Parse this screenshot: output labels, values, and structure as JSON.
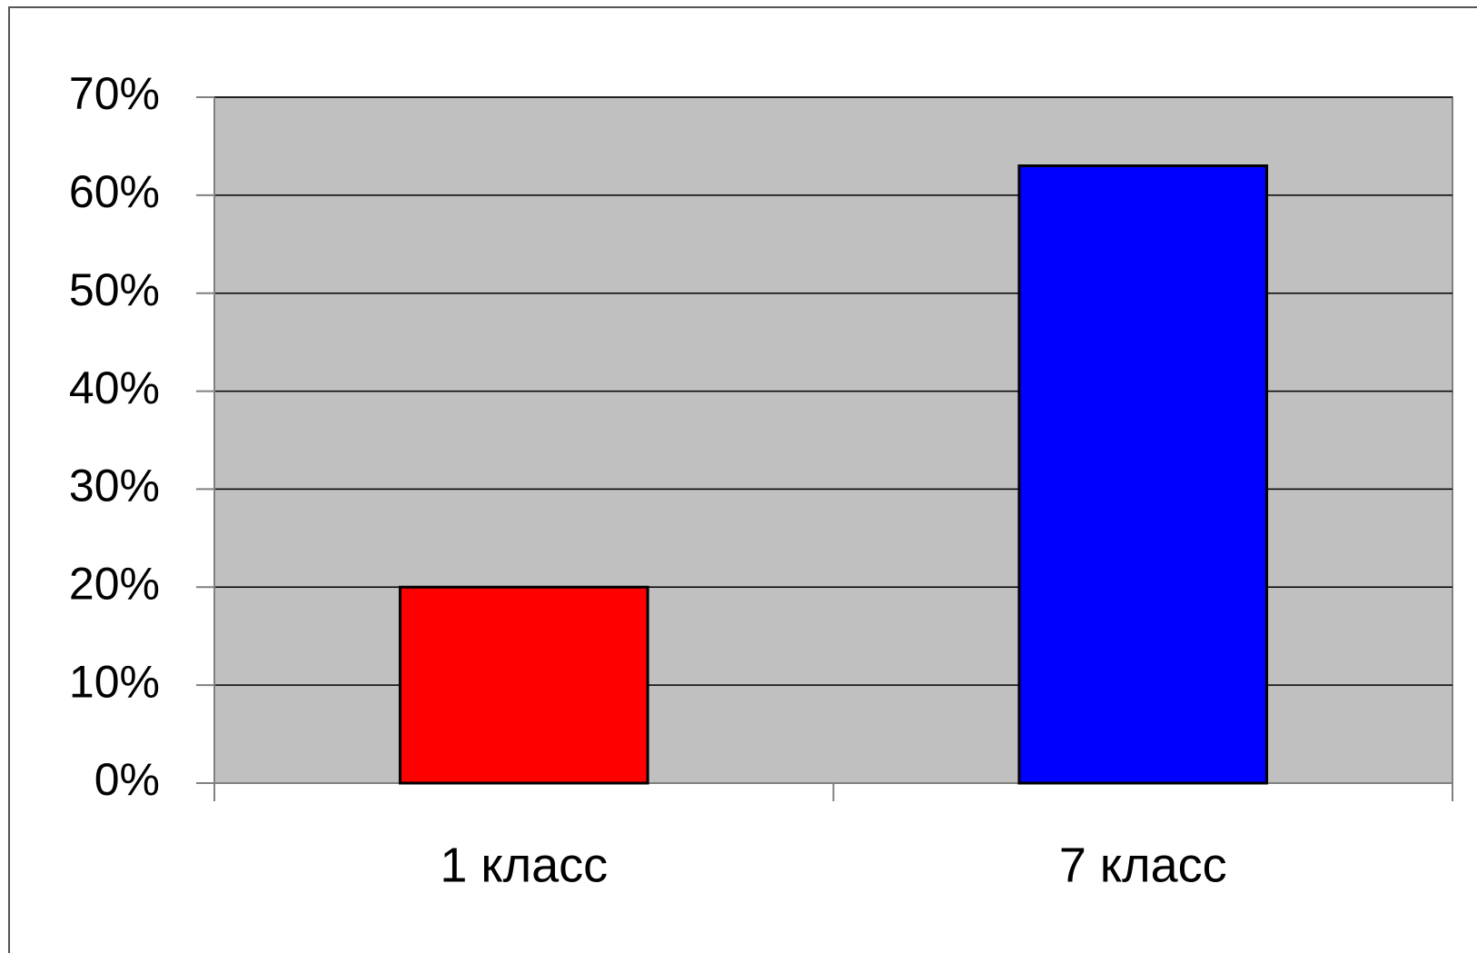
{
  "chart_data": {
    "type": "bar",
    "categories": [
      "1 класс",
      "7 класс"
    ],
    "values": [
      20,
      63
    ],
    "colors": [
      "#ff0000",
      "#0000ff"
    ],
    "ylim": [
      0,
      70
    ],
    "yticks": [
      {
        "value": 0,
        "label": "0%"
      },
      {
        "value": 10,
        "label": "10%"
      },
      {
        "value": 20,
        "label": "20%"
      },
      {
        "value": 30,
        "label": "30%"
      },
      {
        "value": 40,
        "label": "40%"
      },
      {
        "value": 50,
        "label": "50%"
      },
      {
        "value": 60,
        "label": "60%"
      },
      {
        "value": 70,
        "label": "70%"
      }
    ],
    "grid": true
  }
}
